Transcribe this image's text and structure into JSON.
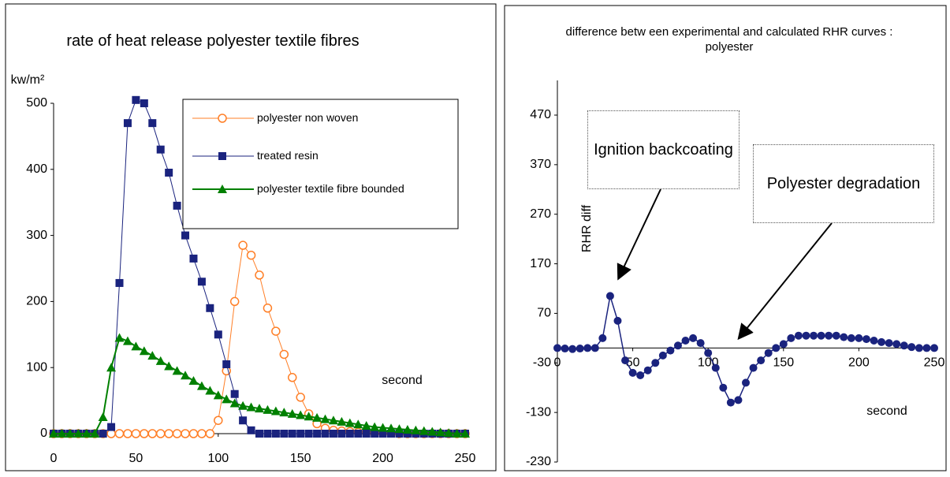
{
  "chart_data": [
    {
      "type": "line",
      "title": "rate of heat release polyester textile fibres",
      "y_label": "kw/m²",
      "x_label": "second",
      "x": [
        0,
        5,
        10,
        15,
        20,
        25,
        30,
        35,
        40,
        45,
        50,
        55,
        60,
        65,
        70,
        75,
        80,
        85,
        90,
        95,
        100,
        105,
        110,
        115,
        120,
        125,
        130,
        135,
        140,
        145,
        150,
        155,
        160,
        165,
        170,
        175,
        180,
        185,
        190,
        195,
        200,
        205,
        210,
        215,
        220,
        225,
        230,
        235,
        240,
        245,
        250
      ],
      "xlim": [
        0,
        250
      ],
      "xticks": [
        0,
        50,
        100,
        150,
        200,
        250
      ],
      "ylim": [
        0,
        500
      ],
      "yticks": [
        0,
        100,
        200,
        300,
        400,
        500
      ],
      "grid": false,
      "legend": "upper right",
      "series": [
        {
          "name": "polyester non woven",
          "color": "#ff7f27",
          "marker": "circle-open",
          "values": [
            0,
            0,
            0,
            0,
            0,
            0,
            0,
            0,
            0,
            0,
            0,
            0,
            0,
            0,
            0,
            0,
            0,
            0,
            0,
            0,
            20,
            95,
            200,
            285,
            270,
            240,
            190,
            155,
            120,
            85,
            55,
            30,
            15,
            8,
            5,
            4,
            3,
            2,
            2,
            1,
            1,
            1,
            0,
            0,
            0,
            0,
            0,
            0,
            0,
            0,
            0
          ]
        },
        {
          "name": "treated resin",
          "color": "#1a237e",
          "marker": "square",
          "values": [
            0,
            0,
            0,
            0,
            0,
            0,
            0,
            10,
            228,
            470,
            505,
            500,
            470,
            430,
            395,
            345,
            300,
            265,
            230,
            190,
            150,
            105,
            60,
            20,
            5,
            0,
            0,
            0,
            0,
            0,
            0,
            0,
            0,
            0,
            0,
            0,
            0,
            0,
            0,
            0,
            0,
            0,
            0,
            0,
            0,
            0,
            0,
            0,
            0,
            0,
            0
          ]
        },
        {
          "name": "polyester textile fibre bounded",
          "color": "#008000",
          "marker": "triangle",
          "values": [
            0,
            0,
            0,
            0,
            0,
            0,
            25,
            100,
            145,
            140,
            132,
            125,
            118,
            110,
            102,
            95,
            88,
            80,
            72,
            65,
            58,
            52,
            46,
            42,
            40,
            38,
            36,
            34,
            32,
            30,
            28,
            26,
            24,
            22,
            20,
            18,
            16,
            14,
            12,
            10,
            9,
            8,
            7,
            6,
            5,
            4,
            3,
            2,
            1,
            0,
            0
          ]
        }
      ]
    },
    {
      "type": "line",
      "title": "difference betw een experimental and calculated RHR curves : polyester",
      "y_label": "RHR diff",
      "x_label": "second",
      "x": [
        0,
        5,
        10,
        15,
        20,
        25,
        30,
        35,
        40,
        45,
        50,
        55,
        60,
        65,
        70,
        75,
        80,
        85,
        90,
        95,
        100,
        105,
        110,
        115,
        120,
        125,
        130,
        135,
        140,
        145,
        150,
        155,
        160,
        165,
        170,
        175,
        180,
        185,
        190,
        195,
        200,
        205,
        210,
        215,
        220,
        225,
        230,
        235,
        240,
        245,
        250
      ],
      "xlim": [
        0,
        250
      ],
      "xticks": [
        0,
        50,
        100,
        150,
        200,
        250
      ],
      "ylim": [
        -230,
        540
      ],
      "yticks": [
        -230,
        -130,
        -30,
        70,
        170,
        270,
        370,
        470
      ],
      "grid": false,
      "annotations": [
        {
          "text": "Ignition backcoating"
        },
        {
          "text": "Polyester degradation"
        }
      ],
      "series": [
        {
          "name": "RHR diff",
          "color": "#1a237e",
          "marker": "circle",
          "values": [
            0,
            -1,
            -2,
            -1,
            0,
            0,
            20,
            105,
            55,
            -25,
            -50,
            -55,
            -45,
            -30,
            -15,
            -5,
            5,
            15,
            20,
            10,
            -10,
            -40,
            -80,
            -110,
            -105,
            -70,
            -40,
            -25,
            -10,
            0,
            8,
            20,
            25,
            25,
            25,
            25,
            25,
            25,
            22,
            20,
            20,
            18,
            15,
            12,
            10,
            8,
            5,
            2,
            0,
            0,
            0
          ]
        }
      ]
    }
  ]
}
